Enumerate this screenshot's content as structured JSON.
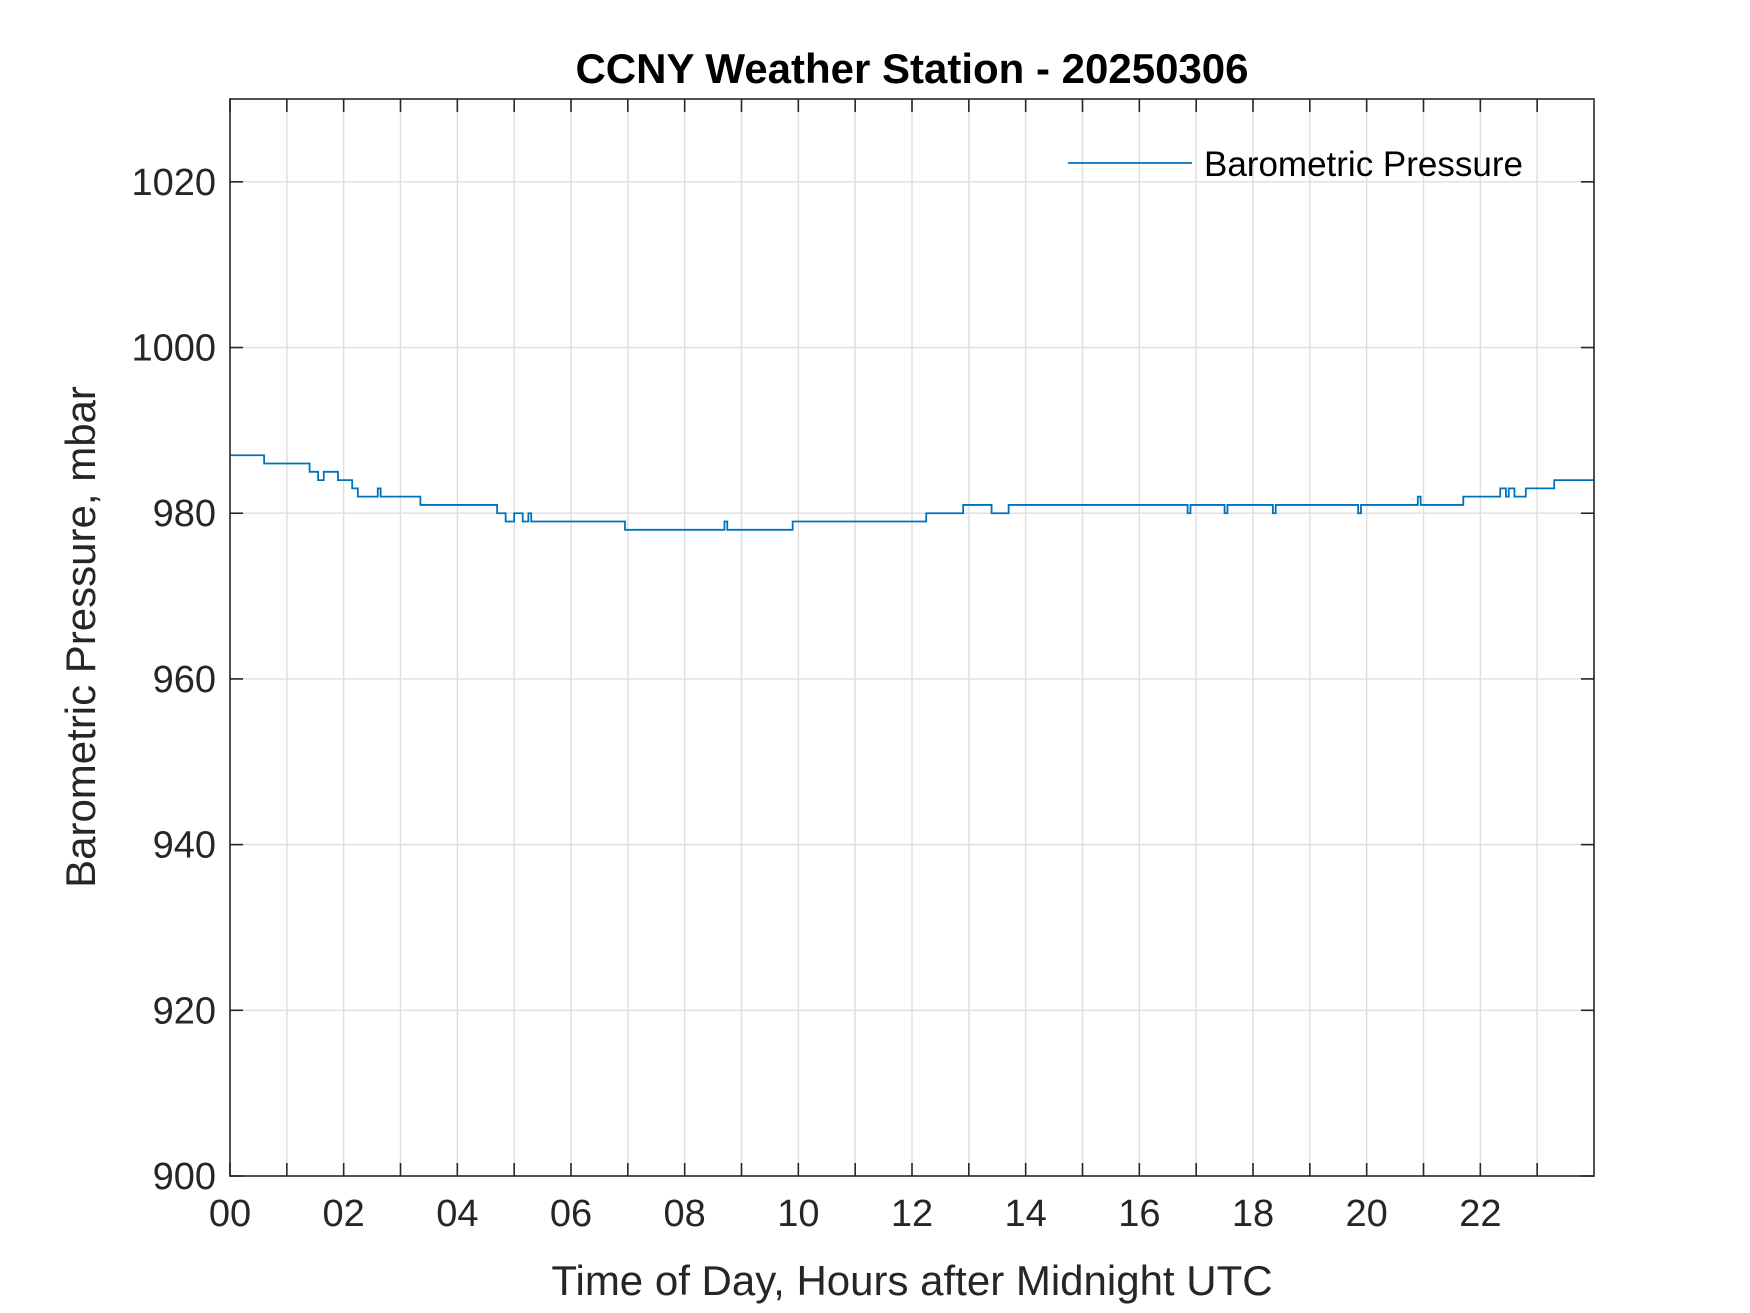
{
  "chart_data": {
    "type": "line",
    "title": "CCNY Weather Station - 20250306",
    "xlabel": "Time of Day, Hours after Midnight UTC",
    "ylabel": "Barometric Pressure, mbar",
    "xlim": [
      0,
      24
    ],
    "ylim": [
      900,
      1030
    ],
    "x_ticks": [
      0,
      2,
      4,
      6,
      8,
      10,
      12,
      14,
      16,
      18,
      20,
      22
    ],
    "x_tick_labels": [
      "00",
      "02",
      "04",
      "06",
      "08",
      "10",
      "12",
      "14",
      "16",
      "18",
      "20",
      "22"
    ],
    "x_grid": [
      0,
      1,
      2,
      3,
      4,
      5,
      6,
      7,
      8,
      9,
      10,
      11,
      12,
      13,
      14,
      15,
      16,
      17,
      18,
      19,
      20,
      21,
      22,
      23
    ],
    "y_ticks": [
      900,
      920,
      940,
      960,
      980,
      1000,
      1020
    ],
    "y_tick_labels": [
      "900",
      "920",
      "940",
      "960",
      "980",
      "1000",
      "1020"
    ],
    "grid": true,
    "legend_position": "top-right",
    "series": [
      {
        "name": "Barometric Pressure",
        "color": "#0072BD",
        "step": true,
        "x": [
          0,
          0.6,
          0.6,
          1.4,
          1.4,
          1.55,
          1.55,
          1.65,
          1.65,
          1.9,
          1.9,
          2.15,
          2.15,
          2.25,
          2.25,
          2.6,
          2.6,
          2.65,
          2.65,
          3.35,
          3.35,
          4.7,
          4.7,
          4.85,
          4.85,
          5.0,
          5.0,
          5.15,
          5.15,
          5.25,
          5.25,
          5.3,
          5.3,
          6.95,
          6.95,
          8.7,
          8.7,
          8.75,
          8.75,
          9.9,
          9.9,
          12.25,
          12.25,
          12.9,
          12.9,
          13.4,
          13.4,
          13.7,
          13.7,
          16.85,
          16.85,
          16.9,
          16.9,
          17.5,
          17.5,
          17.55,
          17.55,
          18.35,
          18.35,
          18.4,
          18.4,
          19.85,
          19.85,
          19.9,
          19.9,
          20.9,
          20.9,
          20.95,
          20.95,
          21.7,
          21.7,
          22.35,
          22.35,
          22.45,
          22.45,
          22.5,
          22.5,
          22.6,
          22.6,
          22.8,
          22.8,
          23.3,
          23.3,
          24
        ],
        "values": [
          987,
          987,
          986,
          986,
          985,
          985,
          984,
          984,
          985,
          985,
          984,
          984,
          983,
          983,
          982,
          982,
          983,
          983,
          982,
          982,
          981,
          981,
          980,
          980,
          979,
          979,
          980,
          980,
          979,
          979,
          980,
          980,
          979,
          979,
          978,
          978,
          979,
          979,
          978,
          978,
          979,
          979,
          980,
          980,
          981,
          981,
          980,
          980,
          981,
          981,
          980,
          980,
          981,
          981,
          980,
          980,
          981,
          981,
          980,
          980,
          981,
          981,
          980,
          980,
          981,
          981,
          982,
          982,
          981,
          981,
          982,
          982,
          983,
          983,
          982,
          982,
          983,
          983,
          982,
          982,
          983,
          983,
          984,
          984
        ]
      }
    ]
  }
}
